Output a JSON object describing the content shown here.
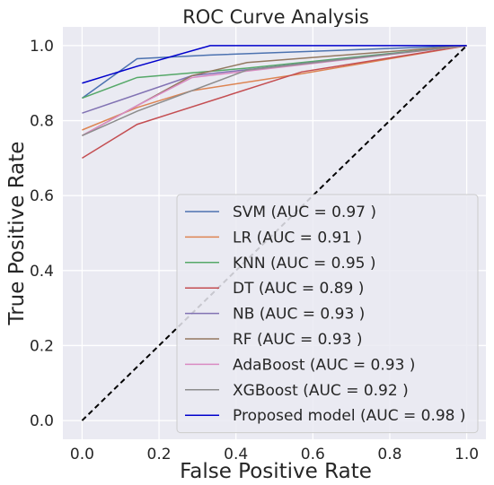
{
  "chart_data": {
    "type": "line",
    "title": "ROC Curve Analysis",
    "xlabel": "False Positive Rate",
    "ylabel": "True Positive Rate",
    "xlim": [
      -0.05,
      1.05
    ],
    "ylim": [
      -0.05,
      1.05
    ],
    "x_ticks": [
      "0.0",
      "0.2",
      "0.4",
      "0.6",
      "0.8",
      "1.0"
    ],
    "y_ticks": [
      "0.0",
      "0.2",
      "0.4",
      "0.6",
      "0.8",
      "1.0"
    ],
    "grid": true,
    "legend_position": "lower-right",
    "background": "#eaeaf2",
    "diagonal_reference": {
      "x": [
        0,
        1
      ],
      "y": [
        0,
        1
      ],
      "color": "#000000",
      "style": "dashed"
    },
    "series": [
      {
        "name": "SVM (AUC = 0.97 )",
        "color": "#4c72b0",
        "x": [
          0.0,
          0.143,
          0.333,
          1.0
        ],
        "y": [
          0.86,
          0.965,
          0.975,
          1.0
        ]
      },
      {
        "name": "LR (AUC = 0.91 )",
        "color": "#dd8452",
        "x": [
          0.0,
          0.143,
          0.286,
          0.571,
          1.0
        ],
        "y": [
          0.775,
          0.835,
          0.88,
          0.925,
          1.0
        ]
      },
      {
        "name": "KNN (AUC = 0.95 )",
        "color": "#55a868",
        "x": [
          0.0,
          0.143,
          0.429,
          1.0
        ],
        "y": [
          0.86,
          0.915,
          0.94,
          1.0
        ]
      },
      {
        "name": "DT (AUC = 0.89 )",
        "color": "#c44e52",
        "x": [
          0.0,
          0.143,
          0.571,
          1.0
        ],
        "y": [
          0.7,
          0.79,
          0.93,
          1.0
        ]
      },
      {
        "name": "NB (AUC = 0.93 )",
        "color": "#8172b3",
        "x": [
          0.0,
          0.286,
          1.0
        ],
        "y": [
          0.82,
          0.92,
          1.0
        ]
      },
      {
        "name": "RF (AUC = 0.93 )",
        "color": "#937860",
        "x": [
          0.0,
          0.286,
          0.429,
          1.0
        ],
        "y": [
          0.76,
          0.92,
          0.955,
          1.0
        ]
      },
      {
        "name": "AdaBoost (AUC = 0.93 )",
        "color": "#da8bc3",
        "x": [
          0.0,
          0.143,
          0.286,
          1.0
        ],
        "y": [
          0.76,
          0.84,
          0.915,
          1.0
        ]
      },
      {
        "name": "XGBoost (AUC = 0.92 )",
        "color": "#8c8c8c",
        "x": [
          0.0,
          0.143,
          0.429,
          1.0
        ],
        "y": [
          0.76,
          0.825,
          0.935,
          1.0
        ]
      },
      {
        "name": "Proposed model (AUC = 0.98 )",
        "color": "#0000cc",
        "x": [
          0.0,
          0.143,
          0.333,
          1.0
        ],
        "y": [
          0.9,
          0.945,
          1.0,
          1.0
        ]
      }
    ]
  }
}
